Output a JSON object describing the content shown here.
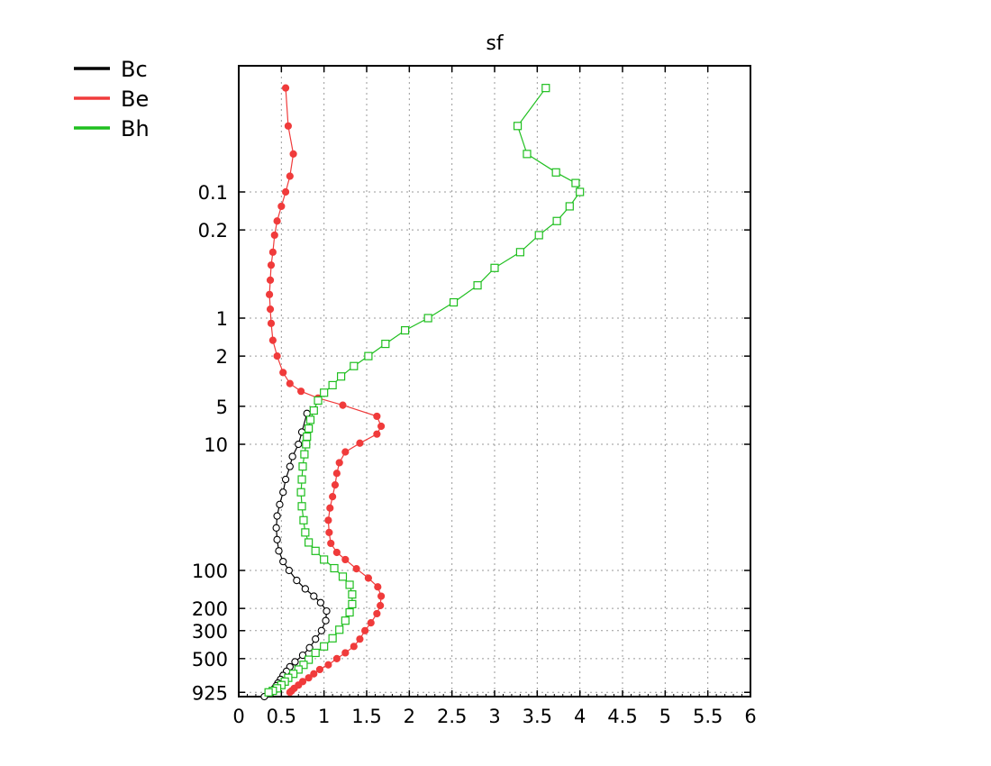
{
  "chart_data": {
    "type": "line",
    "title": "sf",
    "xlabel": "",
    "ylabel": "",
    "xlim": [
      0,
      6
    ],
    "x_ticks": [
      0,
      0.5,
      1,
      1.5,
      2,
      2.5,
      3,
      3.5,
      4,
      4.5,
      5,
      5.5,
      6
    ],
    "x_tick_labels": [
      "0",
      "0.5",
      "1",
      "1.5",
      "2",
      "2.5",
      "3",
      "3.5",
      "4",
      "4.5",
      "5",
      "5.5",
      "6"
    ],
    "y_scale": "log",
    "y_inverted": true,
    "ylim": [
      0.01,
      1000
    ],
    "y_ticks": [
      0.1,
      0.2,
      1,
      2,
      5,
      10,
      100,
      200,
      300,
      500,
      925
    ],
    "y_tick_labels": [
      "0.1",
      "0.2",
      "1",
      "2",
      "5",
      "10",
      "100",
      "200",
      "300",
      "500",
      "925"
    ],
    "grid": true,
    "legend_position": "top-left",
    "series": [
      {
        "name": "Bc",
        "color": "#000000",
        "marker": "open-circle",
        "points": [
          [
            0.8,
            5.7
          ],
          [
            0.74,
            8.0
          ],
          [
            0.7,
            10.0
          ],
          [
            0.63,
            12.5
          ],
          [
            0.6,
            15.0
          ],
          [
            0.55,
            19.0
          ],
          [
            0.52,
            24.0
          ],
          [
            0.48,
            30.0
          ],
          [
            0.45,
            37.0
          ],
          [
            0.44,
            46.0
          ],
          [
            0.45,
            57.0
          ],
          [
            0.47,
            70.0
          ],
          [
            0.52,
            85.0
          ],
          [
            0.59,
            100.0
          ],
          [
            0.68,
            120.0
          ],
          [
            0.78,
            140.0
          ],
          [
            0.88,
            160.0
          ],
          [
            0.96,
            180.0
          ],
          [
            1.03,
            210.0
          ],
          [
            1.02,
            250.0
          ],
          [
            0.97,
            300.0
          ],
          [
            0.9,
            350.0
          ],
          [
            0.83,
            410.0
          ],
          [
            0.75,
            470.0
          ],
          [
            0.66,
            530.0
          ],
          [
            0.6,
            580.0
          ],
          [
            0.56,
            630.0
          ],
          [
            0.52,
            680.0
          ],
          [
            0.49,
            730.0
          ],
          [
            0.46,
            780.0
          ],
          [
            0.44,
            820.0
          ],
          [
            0.42,
            860.0
          ],
          [
            0.4,
            890.0
          ],
          [
            0.38,
            925.0
          ],
          [
            0.3,
            1000.0
          ]
        ]
      },
      {
        "name": "Be",
        "color": "#f03b3b",
        "marker": "filled-circle",
        "points": [
          [
            0.55,
            0.015
          ],
          [
            0.58,
            0.03
          ],
          [
            0.64,
            0.05
          ],
          [
            0.6,
            0.075
          ],
          [
            0.55,
            0.1
          ],
          [
            0.5,
            0.13
          ],
          [
            0.45,
            0.17
          ],
          [
            0.42,
            0.22
          ],
          [
            0.4,
            0.3
          ],
          [
            0.38,
            0.38
          ],
          [
            0.37,
            0.5
          ],
          [
            0.36,
            0.65
          ],
          [
            0.37,
            0.85
          ],
          [
            0.38,
            1.1
          ],
          [
            0.4,
            1.5
          ],
          [
            0.45,
            2.0
          ],
          [
            0.52,
            2.7
          ],
          [
            0.6,
            3.3
          ],
          [
            0.73,
            3.8
          ],
          [
            0.93,
            4.3
          ],
          [
            1.22,
            4.9
          ],
          [
            1.62,
            6.0
          ],
          [
            1.67,
            7.2
          ],
          [
            1.62,
            8.3
          ],
          [
            1.42,
            9.8
          ],
          [
            1.25,
            11.5
          ],
          [
            1.18,
            14.0
          ],
          [
            1.15,
            17.0
          ],
          [
            1.13,
            21.0
          ],
          [
            1.1,
            26.0
          ],
          [
            1.07,
            32.0
          ],
          [
            1.05,
            40.0
          ],
          [
            1.06,
            50.0
          ],
          [
            1.08,
            61.0
          ],
          [
            1.15,
            72.0
          ],
          [
            1.25,
            82.0
          ],
          [
            1.38,
            97.0
          ],
          [
            1.52,
            115.0
          ],
          [
            1.63,
            135.0
          ],
          [
            1.67,
            160.0
          ],
          [
            1.66,
            190.0
          ],
          [
            1.62,
            220.0
          ],
          [
            1.55,
            260.0
          ],
          [
            1.48,
            300.0
          ],
          [
            1.42,
            350.0
          ],
          [
            1.35,
            400.0
          ],
          [
            1.25,
            450.0
          ],
          [
            1.15,
            500.0
          ],
          [
            1.05,
            560.0
          ],
          [
            0.95,
            610.0
          ],
          [
            0.88,
            660.0
          ],
          [
            0.82,
            710.0
          ],
          [
            0.75,
            760.0
          ],
          [
            0.7,
            810.0
          ],
          [
            0.65,
            860.0
          ],
          [
            0.62,
            900.0
          ],
          [
            0.6,
            925.0
          ]
        ]
      },
      {
        "name": "Bh",
        "color": "#1fbf1f",
        "marker": "open-square",
        "points": [
          [
            3.6,
            0.015
          ],
          [
            3.27,
            0.03
          ],
          [
            3.38,
            0.05
          ],
          [
            3.72,
            0.07
          ],
          [
            3.95,
            0.085
          ],
          [
            4.0,
            0.1
          ],
          [
            3.88,
            0.13
          ],
          [
            3.73,
            0.17
          ],
          [
            3.52,
            0.22
          ],
          [
            3.3,
            0.3
          ],
          [
            3.0,
            0.4
          ],
          [
            2.8,
            0.55
          ],
          [
            2.52,
            0.75
          ],
          [
            2.22,
            1.0
          ],
          [
            1.95,
            1.25
          ],
          [
            1.72,
            1.6
          ],
          [
            1.52,
            2.0
          ],
          [
            1.35,
            2.4
          ],
          [
            1.2,
            2.9
          ],
          [
            1.1,
            3.4
          ],
          [
            1.0,
            3.9
          ],
          [
            0.93,
            4.5
          ],
          [
            0.88,
            5.4
          ],
          [
            0.84,
            6.4
          ],
          [
            0.82,
            7.5
          ],
          [
            0.8,
            8.7
          ],
          [
            0.79,
            10.0
          ],
          [
            0.77,
            12.0
          ],
          [
            0.75,
            15.0
          ],
          [
            0.74,
            19.0
          ],
          [
            0.73,
            24.0
          ],
          [
            0.74,
            31.0
          ],
          [
            0.76,
            40.0
          ],
          [
            0.78,
            50.0
          ],
          [
            0.82,
            60.0
          ],
          [
            0.9,
            70.0
          ],
          [
            1.0,
            82.0
          ],
          [
            1.12,
            96.0
          ],
          [
            1.22,
            112.0
          ],
          [
            1.3,
            130.0
          ],
          [
            1.33,
            155.0
          ],
          [
            1.33,
            185.0
          ],
          [
            1.3,
            215.0
          ],
          [
            1.25,
            250.0
          ],
          [
            1.18,
            295.0
          ],
          [
            1.1,
            345.0
          ],
          [
            1.0,
            400.0
          ],
          [
            0.9,
            450.0
          ],
          [
            0.82,
            510.0
          ],
          [
            0.76,
            560.0
          ],
          [
            0.7,
            610.0
          ],
          [
            0.64,
            660.0
          ],
          [
            0.58,
            710.0
          ],
          [
            0.54,
            760.0
          ],
          [
            0.5,
            810.0
          ],
          [
            0.45,
            860.0
          ],
          [
            0.4,
            900.0
          ],
          [
            0.35,
            925.0
          ]
        ]
      }
    ]
  }
}
